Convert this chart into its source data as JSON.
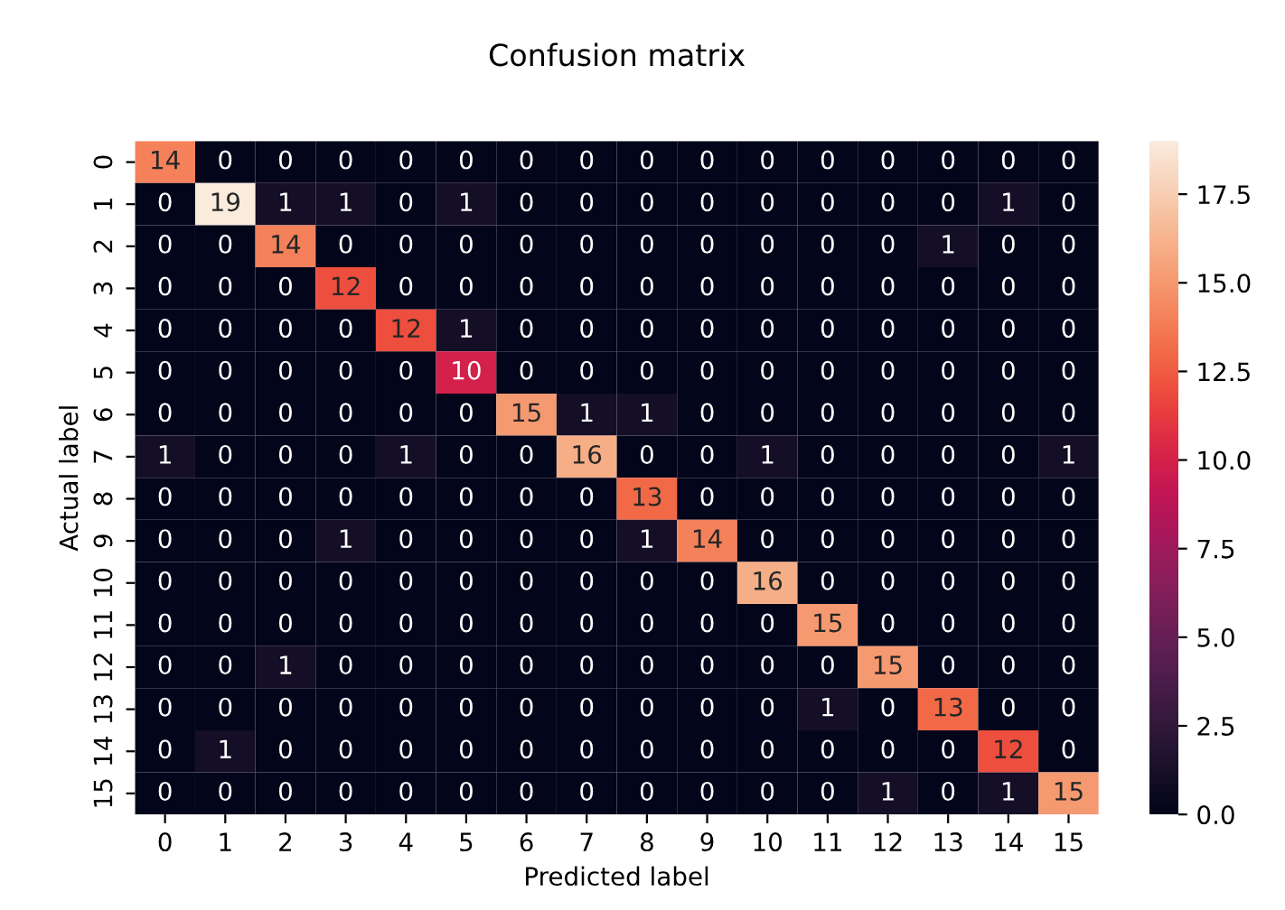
{
  "chart_data": {
    "type": "heatmap",
    "title": "Confusion matrix",
    "xlabel": "Predicted label",
    "ylabel": "Actual label",
    "categories": [
      "0",
      "1",
      "2",
      "3",
      "4",
      "5",
      "6",
      "7",
      "8",
      "9",
      "10",
      "11",
      "12",
      "13",
      "14",
      "15"
    ],
    "y_categories": [
      "0",
      "1",
      "2",
      "3",
      "4",
      "5",
      "6",
      "7",
      "8",
      "9",
      "10",
      "11",
      "12",
      "13",
      "14",
      "15"
    ],
    "cells": [
      [
        14,
        0,
        0,
        0,
        0,
        0,
        0,
        0,
        0,
        0,
        0,
        0,
        0,
        0,
        0,
        0
      ],
      [
        0,
        19,
        1,
        1,
        0,
        1,
        0,
        0,
        0,
        0,
        0,
        0,
        0,
        0,
        1,
        0
      ],
      [
        0,
        0,
        14,
        0,
        0,
        0,
        0,
        0,
        0,
        0,
        0,
        0,
        0,
        1,
        0,
        0
      ],
      [
        0,
        0,
        0,
        12,
        0,
        0,
        0,
        0,
        0,
        0,
        0,
        0,
        0,
        0,
        0,
        0
      ],
      [
        0,
        0,
        0,
        0,
        12,
        1,
        0,
        0,
        0,
        0,
        0,
        0,
        0,
        0,
        0,
        0
      ],
      [
        0,
        0,
        0,
        0,
        0,
        10,
        0,
        0,
        0,
        0,
        0,
        0,
        0,
        0,
        0,
        0
      ],
      [
        0,
        0,
        0,
        0,
        0,
        0,
        15,
        1,
        1,
        0,
        0,
        0,
        0,
        0,
        0,
        0
      ],
      [
        1,
        0,
        0,
        0,
        1,
        0,
        0,
        16,
        0,
        0,
        1,
        0,
        0,
        0,
        0,
        1
      ],
      [
        0,
        0,
        0,
        0,
        0,
        0,
        0,
        0,
        13,
        0,
        0,
        0,
        0,
        0,
        0,
        0
      ],
      [
        0,
        0,
        0,
        1,
        0,
        0,
        0,
        0,
        1,
        14,
        0,
        0,
        0,
        0,
        0,
        0
      ],
      [
        0,
        0,
        0,
        0,
        0,
        0,
        0,
        0,
        0,
        0,
        16,
        0,
        0,
        0,
        0,
        0
      ],
      [
        0,
        0,
        0,
        0,
        0,
        0,
        0,
        0,
        0,
        0,
        0,
        15,
        0,
        0,
        0,
        0
      ],
      [
        0,
        0,
        1,
        0,
        0,
        0,
        0,
        0,
        0,
        0,
        0,
        0,
        15,
        0,
        0,
        0
      ],
      [
        0,
        0,
        0,
        0,
        0,
        0,
        0,
        0,
        0,
        0,
        0,
        1,
        0,
        13,
        0,
        0
      ],
      [
        0,
        1,
        0,
        0,
        0,
        0,
        0,
        0,
        0,
        0,
        0,
        0,
        0,
        0,
        12,
        0
      ],
      [
        0,
        0,
        0,
        0,
        0,
        0,
        0,
        0,
        0,
        0,
        0,
        0,
        1,
        0,
        1,
        15
      ]
    ],
    "clim": [
      0,
      19
    ],
    "cticks": [
      {
        "value": 0,
        "label": "0.0"
      },
      {
        "value": 2.5,
        "label": "2.5"
      },
      {
        "value": 5,
        "label": "5.0"
      },
      {
        "value": 7.5,
        "label": "7.5"
      },
      {
        "value": 10,
        "label": "10.0"
      },
      {
        "value": 12.5,
        "label": "12.5"
      },
      {
        "value": 15,
        "label": "15.0"
      },
      {
        "value": 17.5,
        "label": "17.5"
      }
    ],
    "data_labels": true
  }
}
